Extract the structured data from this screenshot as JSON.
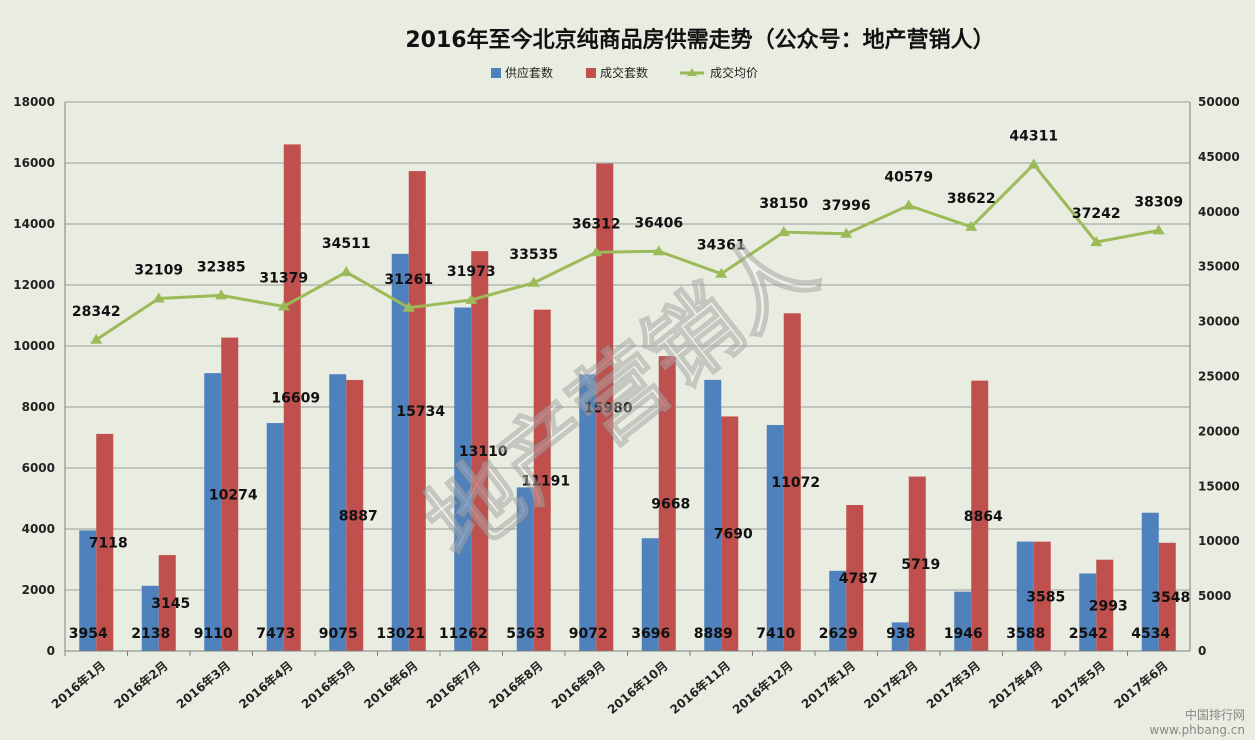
{
  "chart_data": {
    "type": "bar",
    "title": "2016年至今北京纯商品房供需走势（公众号：地产营销人）",
    "categories": [
      "2016年1月",
      "2016年2月",
      "2016年3月",
      "2016年4月",
      "2016年5月",
      "2016年6月",
      "2016年7月",
      "2016年8月",
      "2016年9月",
      "2016年10月",
      "2016年11月",
      "2016年12月",
      "2017年1月",
      "2017年2月",
      "2017年3月",
      "2017年4月",
      "2017年5月",
      "2017年6月"
    ],
    "series": [
      {
        "name": "供应套数",
        "type": "bar",
        "axis": "left",
        "color": "#4f81bd",
        "values": [
          3954,
          2138,
          9110,
          7473,
          9075,
          13021,
          11262,
          5363,
          9072,
          3696,
          8889,
          7410,
          2629,
          938,
          1946,
          3588,
          2542,
          4534
        ]
      },
      {
        "name": "成交套数",
        "type": "bar",
        "axis": "left",
        "color": "#c0504d",
        "values": [
          7118,
          3145,
          10274,
          16609,
          8887,
          15734,
          13110,
          11191,
          15980,
          9668,
          7690,
          11072,
          4787,
          5719,
          8864,
          3585,
          2993,
          3548
        ]
      },
      {
        "name": "成交均价",
        "type": "line",
        "axis": "right",
        "color": "#9bbb59",
        "values": [
          28342,
          32109,
          32385,
          31379,
          34511,
          31261,
          31973,
          33535,
          36312,
          36406,
          34361,
          38150,
          37996,
          40579,
          38622,
          44311,
          37242,
          38309
        ]
      }
    ],
    "y_left": {
      "min": 0,
      "max": 18000,
      "step": 2000
    },
    "y_right": {
      "min": 0,
      "max": 50000,
      "step": 5000
    },
    "grid": true,
    "legend": "top-center"
  },
  "watermark": {
    "center_text": "地产营销人",
    "corner_text_1": "中国排行网",
    "corner_text_2": "www.phbang.cn"
  }
}
